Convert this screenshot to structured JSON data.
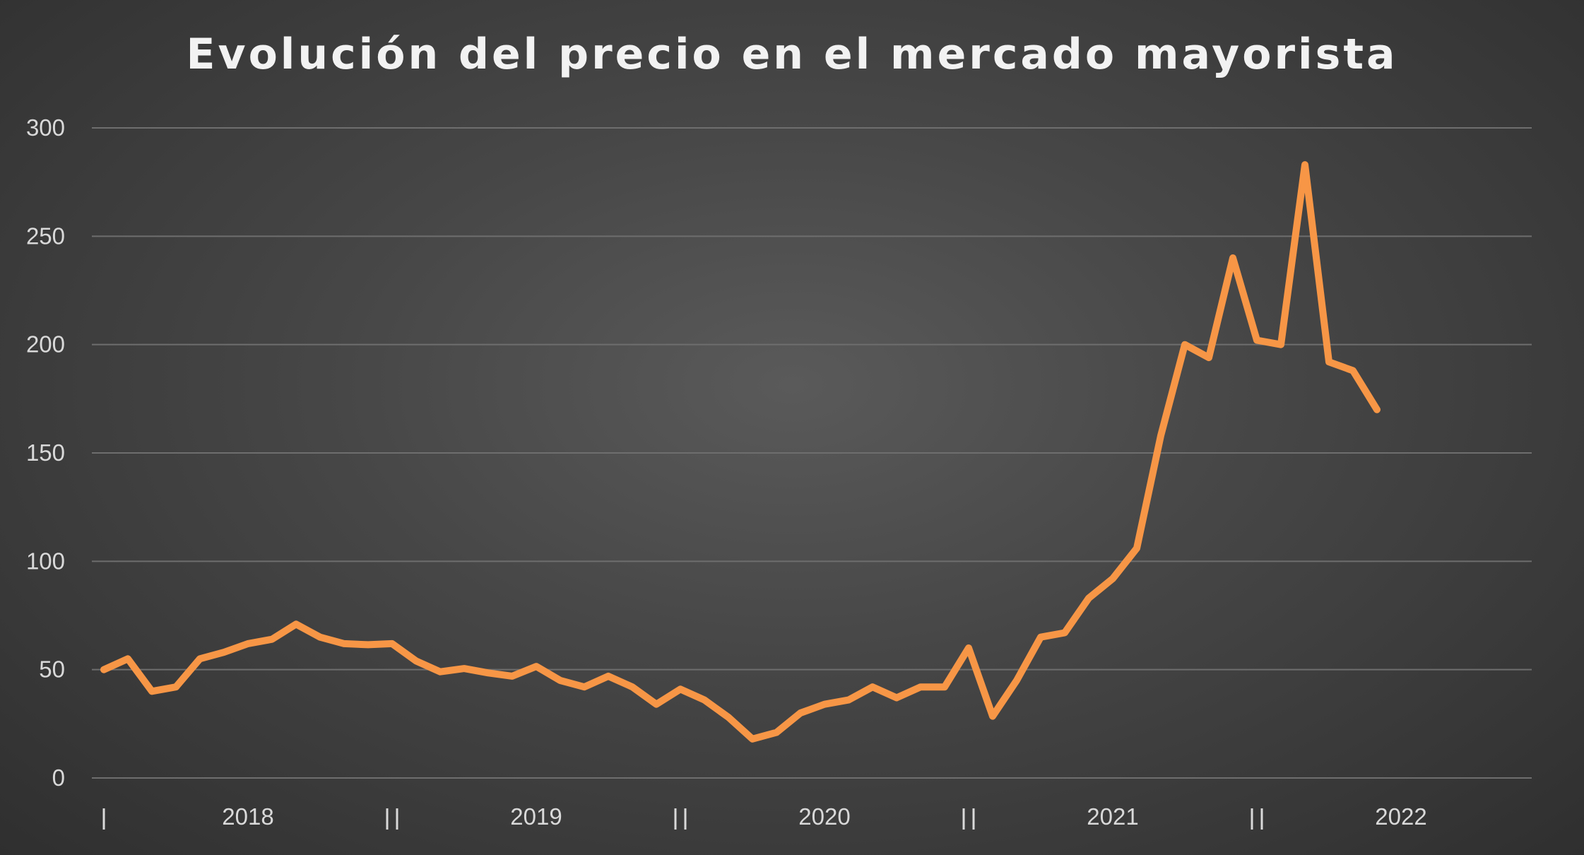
{
  "title": "Evolución del precio en el mercado mayorista",
  "chart_data": {
    "type": "line",
    "title": "Evolución del precio en el mercado mayorista",
    "xlabel": "",
    "ylabel": "",
    "ylim": [
      0,
      300
    ],
    "yticks": [
      0,
      50,
      100,
      150,
      200,
      250,
      300
    ],
    "year_labels": [
      "2018",
      "2019",
      "2020",
      "2021",
      "2022"
    ],
    "grid": true,
    "legend": "none",
    "line_color": "#F79646",
    "x": [
      "2018-01",
      "2018-02",
      "2018-03",
      "2018-04",
      "2018-05",
      "2018-06",
      "2018-07",
      "2018-08",
      "2018-09",
      "2018-10",
      "2018-11",
      "2018-12",
      "2019-01",
      "2019-02",
      "2019-03",
      "2019-04",
      "2019-05",
      "2019-06",
      "2019-07",
      "2019-08",
      "2019-09",
      "2019-10",
      "2019-11",
      "2019-12",
      "2020-01",
      "2020-02",
      "2020-03",
      "2020-04",
      "2020-05",
      "2020-06",
      "2020-07",
      "2020-08",
      "2020-09",
      "2020-10",
      "2020-11",
      "2020-12",
      "2021-01",
      "2021-02",
      "2021-03",
      "2021-04",
      "2021-05",
      "2021-06",
      "2021-07",
      "2021-08",
      "2021-09",
      "2021-10",
      "2021-11",
      "2021-12",
      "2022-01",
      "2022-02",
      "2022-03",
      "2022-04",
      "2022-05",
      "2022-06"
    ],
    "values": [
      50,
      55,
      40,
      42,
      55,
      58,
      62,
      64,
      71,
      65,
      62,
      61.5,
      62,
      54,
      49,
      50.5,
      48.5,
      47,
      51.5,
      45,
      42,
      47,
      42,
      34,
      41,
      36,
      28,
      18,
      21,
      30,
      34,
      36,
      42,
      37,
      42,
      42,
      60,
      28.5,
      45,
      65,
      67,
      83,
      92,
      106,
      158,
      200,
      194,
      240,
      202,
      200,
      283,
      192,
      188,
      170
    ]
  }
}
